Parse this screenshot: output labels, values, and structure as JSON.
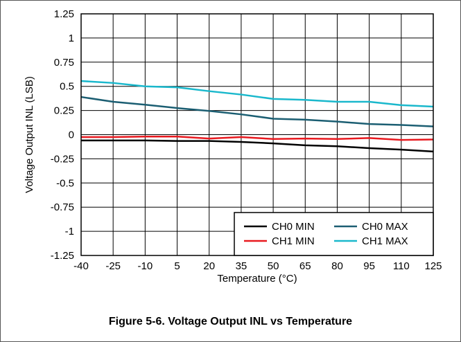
{
  "caption": "Figure 5-6. Voltage Output INL vs Temperature",
  "chart_data": {
    "type": "line",
    "title": "",
    "xlabel": "Temperature (°C)",
    "ylabel": "Voltage Output INL (LSB)",
    "xlim": [
      -40,
      125
    ],
    "ylim": [
      -1.25,
      1.25
    ],
    "x": [
      -40,
      -25,
      -10,
      5,
      20,
      35,
      50,
      65,
      80,
      95,
      110,
      125
    ],
    "x_ticks": [
      "-40",
      "-25",
      "-10",
      "5",
      "20",
      "35",
      "50",
      "65",
      "80",
      "95",
      "110",
      "125"
    ],
    "y_ticks": [
      "1.25",
      "1",
      "0.75",
      "0.5",
      "0.25",
      "0",
      "-0.25",
      "-0.5",
      "-0.75",
      "-1",
      "-1.25"
    ],
    "y_tick_values": [
      1.25,
      1,
      0.75,
      0.5,
      0.25,
      0,
      -0.25,
      -0.5,
      -0.75,
      -1,
      -1.25
    ],
    "grid": true,
    "legend_placement": "bottom-right",
    "series": [
      {
        "name": "CH0 MIN",
        "color": "#000000",
        "values": [
          -0.06,
          -0.06,
          -0.06,
          -0.065,
          -0.065,
          -0.075,
          -0.09,
          -0.11,
          -0.12,
          -0.14,
          -0.155,
          -0.175
        ]
      },
      {
        "name": "CH0 MAX",
        "color": "#1b5e72",
        "values": [
          0.39,
          0.34,
          0.31,
          0.275,
          0.245,
          0.21,
          0.165,
          0.155,
          0.135,
          0.11,
          0.1,
          0.085
        ]
      },
      {
        "name": "CH1 MIN",
        "color": "#e8191f",
        "values": [
          -0.025,
          -0.025,
          -0.02,
          -0.02,
          -0.04,
          -0.025,
          -0.045,
          -0.04,
          -0.045,
          -0.035,
          -0.055,
          -0.05
        ]
      },
      {
        "name": "CH1 MAX",
        "color": "#1ab8cc",
        "values": [
          0.555,
          0.535,
          0.5,
          0.49,
          0.45,
          0.415,
          0.37,
          0.36,
          0.34,
          0.34,
          0.305,
          0.29
        ]
      }
    ]
  }
}
